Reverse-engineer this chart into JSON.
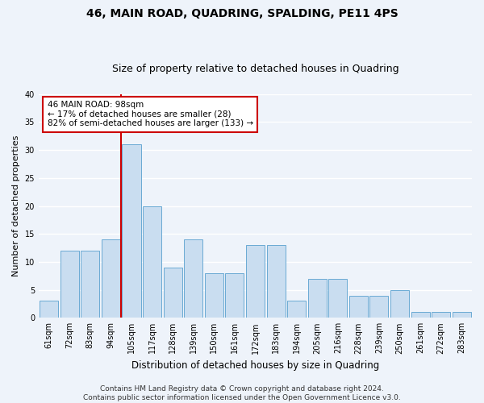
{
  "title": "46, MAIN ROAD, QUADRING, SPALDING, PE11 4PS",
  "subtitle": "Size of property relative to detached houses in Quadring",
  "xlabel": "Distribution of detached houses by size in Quadring",
  "ylabel": "Number of detached properties",
  "categories": [
    "61sqm",
    "72sqm",
    "83sqm",
    "94sqm",
    "105sqm",
    "117sqm",
    "128sqm",
    "139sqm",
    "150sqm",
    "161sqm",
    "172sqm",
    "183sqm",
    "194sqm",
    "205sqm",
    "216sqm",
    "228sqm",
    "239sqm",
    "250sqm",
    "261sqm",
    "272sqm",
    "283sqm"
  ],
  "values": [
    3,
    12,
    12,
    14,
    31,
    20,
    9,
    14,
    8,
    8,
    13,
    13,
    3,
    7,
    7,
    4,
    4,
    5,
    1,
    1,
    1
  ],
  "bar_color": "#c9ddf0",
  "bar_edge_color": "#6aaad4",
  "background_color": "#eef3fa",
  "grid_color": "#ffffff",
  "vline_x_index": 3.5,
  "vline_color": "#cc0000",
  "annotation_text": "46 MAIN ROAD: 98sqm\n← 17% of detached houses are smaller (28)\n82% of semi-detached houses are larger (133) →",
  "annotation_box_color": "#ffffff",
  "annotation_box_edge": "#cc0000",
  "footer_text": "Contains HM Land Registry data © Crown copyright and database right 2024.\nContains public sector information licensed under the Open Government Licence v3.0.",
  "ylim": [
    0,
    40
  ],
  "yticks": [
    0,
    5,
    10,
    15,
    20,
    25,
    30,
    35,
    40
  ],
  "title_fontsize": 10,
  "subtitle_fontsize": 9,
  "ylabel_fontsize": 8,
  "xlabel_fontsize": 8.5,
  "tick_fontsize": 7,
  "annot_fontsize": 7.5,
  "footer_fontsize": 6.5
}
